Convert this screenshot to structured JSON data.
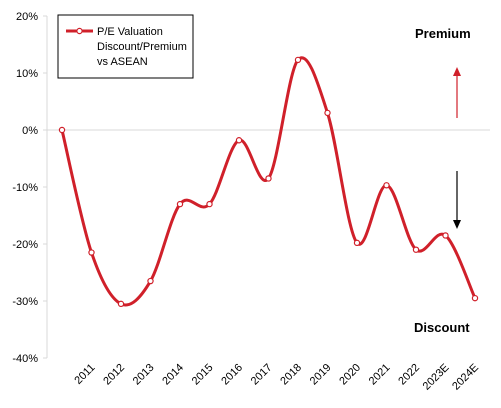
{
  "chart_data": {
    "type": "line",
    "title": "",
    "xlabel": "",
    "ylabel": "",
    "categories": [
      "2011",
      "2012",
      "2013",
      "2014",
      "2015",
      "2016",
      "2017",
      "2018",
      "2019",
      "2020",
      "2021",
      "2022",
      "2023E",
      "2024E"
    ],
    "x_start_point": "2010",
    "series": [
      {
        "name": "P/E Valuation Discount/Premium vs ASEAN",
        "name_lines": [
          "P/E Valuation",
          "Discount/Premium",
          "vs ASEAN"
        ],
        "x": [
          "2010",
          "2011",
          "2012",
          "2013",
          "2014",
          "2015",
          "2016",
          "2017",
          "2018",
          "2019",
          "2020",
          "2021",
          "2022",
          "2023E",
          "2024E"
        ],
        "values": [
          0,
          -21.5,
          -30.5,
          -26.5,
          -13,
          -13,
          -1.8,
          -8.5,
          12.3,
          3,
          -19.8,
          -9.7,
          -21,
          -18.5,
          -29.5
        ],
        "color": "#d0202a"
      }
    ],
    "ylim": [
      -40,
      20
    ],
    "y_ticks": [
      -40,
      -30,
      -20,
      -10,
      0,
      10,
      20
    ],
    "y_tick_labels": [
      "-40%",
      "-30%",
      "-20%",
      "-10%",
      "0%",
      "10%",
      "20%"
    ],
    "grid": false,
    "legend_position": "top-left",
    "annotations": [
      {
        "id": "premium",
        "text": "Premium",
        "arrow": "up",
        "arrow_color": "#d0202a"
      },
      {
        "id": "discount",
        "text": "Discount",
        "arrow": "down",
        "arrow_color": "#000000"
      }
    ],
    "colors": {
      "line": "#d0202a",
      "axis": "#d9d9d9",
      "marker_fill": "#ffffff"
    }
  }
}
